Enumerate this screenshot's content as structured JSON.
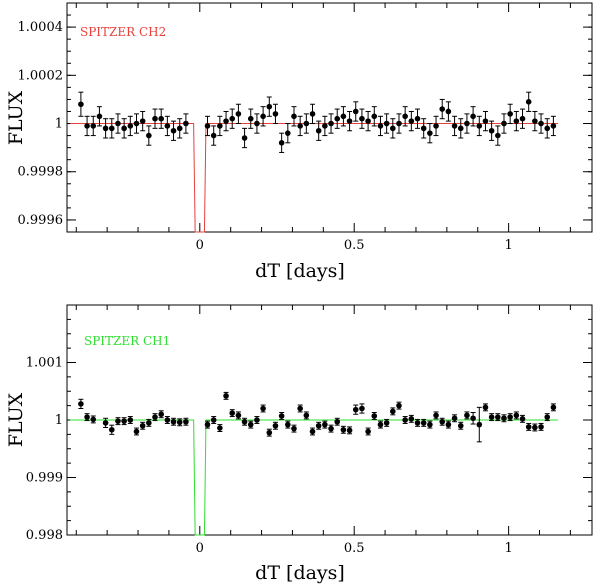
{
  "chart_data": [
    {
      "type": "scatter",
      "title": "SPITZER CH2",
      "title_color": "#e8413c",
      "model_color": "#e8413c",
      "xlabel": "dT [days]",
      "ylabel": "FLUX",
      "xlim": [
        -0.43,
        1.27
      ],
      "ylim": [
        0.99955,
        1.0005
      ],
      "xticks": [
        0,
        0.5,
        1
      ],
      "xtick_labels": [
        "0",
        "0.5",
        "1"
      ],
      "yticks": [
        0.9996,
        0.9998,
        1.0,
        1.0002,
        1.0004
      ],
      "ytick_labels": [
        "0.9996",
        "0.9998",
        "1",
        "1.0002",
        "1.0004"
      ],
      "transit": {
        "ingress": -0.015,
        "egress": 0.015,
        "depth_flux": 0.99955
      },
      "x": [
        -0.385,
        -0.365,
        -0.345,
        -0.325,
        -0.305,
        -0.285,
        -0.265,
        -0.245,
        -0.225,
        -0.205,
        -0.185,
        -0.165,
        -0.145,
        -0.125,
        -0.105,
        -0.085,
        -0.065,
        -0.045,
        0.025,
        0.045,
        0.065,
        0.085,
        0.105,
        0.125,
        0.145,
        0.165,
        0.185,
        0.205,
        0.225,
        0.245,
        0.265,
        0.285,
        0.305,
        0.325,
        0.345,
        0.365,
        0.385,
        0.405,
        0.425,
        0.445,
        0.465,
        0.485,
        0.505,
        0.525,
        0.545,
        0.565,
        0.585,
        0.605,
        0.625,
        0.645,
        0.665,
        0.685,
        0.705,
        0.725,
        0.745,
        0.765,
        0.785,
        0.805,
        0.825,
        0.845,
        0.865,
        0.885,
        0.905,
        0.925,
        0.945,
        0.965,
        0.985,
        1.005,
        1.025,
        1.045,
        1.065,
        1.085,
        1.105,
        1.125,
        1.145
      ],
      "y": [
        1.00008,
        0.99999,
        0.99999,
        1.00003,
        0.99998,
        0.99998,
        1.0,
        0.99998,
        0.99999,
        1.0,
        1.00001,
        0.99995,
        1.00002,
        1.00002,
        0.99999,
        0.99997,
        0.99998,
        1.0,
        0.99999,
        0.99995,
        0.99999,
        1.00001,
        1.00002,
        1.00004,
        0.99994,
        1.00002,
        1.0,
        1.00003,
        1.00007,
        1.00004,
        0.99992,
        0.99996,
        1.00003,
        0.99999,
        1.0,
        1.00004,
        0.99997,
        0.99999,
        1.0,
        1.00002,
        1.00003,
        1.00001,
        1.00005,
        1.00002,
        1.00001,
        1.00003,
        0.99999,
        1.0,
        0.99998,
        1.0,
        1.00003,
        1.00001,
        1.00002,
        0.99998,
        0.99996,
        0.99999,
        1.00006,
        1.00005,
        0.99999,
        0.99998,
        1.0,
        1.00003,
        0.99999,
        1.00001,
        0.99997,
        0.99995,
        1.0,
        1.00004,
        1.00001,
        1.00002,
        1.00009,
        1.00001,
        1.0,
        0.99998,
        0.99999
      ],
      "yerr": [
        5e-05,
        4e-05,
        4e-05,
        4e-05,
        4e-05,
        4e-05,
        4e-05,
        4e-05,
        4e-05,
        4e-05,
        4e-05,
        4e-05,
        4e-05,
        4e-05,
        4e-05,
        4e-05,
        4e-05,
        4e-05,
        4e-05,
        4e-05,
        4e-05,
        4e-05,
        4e-05,
        4e-05,
        4e-05,
        4e-05,
        4e-05,
        4e-05,
        4e-05,
        4e-05,
        4e-05,
        4e-05,
        4e-05,
        4e-05,
        4e-05,
        4e-05,
        4e-05,
        4e-05,
        4e-05,
        4e-05,
        4e-05,
        4e-05,
        4e-05,
        4e-05,
        4e-05,
        4e-05,
        4e-05,
        4e-05,
        4e-05,
        4e-05,
        4e-05,
        4e-05,
        4e-05,
        4e-05,
        4e-05,
        4e-05,
        4e-05,
        4e-05,
        4e-05,
        4e-05,
        4e-05,
        4e-05,
        4e-05,
        4e-05,
        4e-05,
        4e-05,
        4e-05,
        4e-05,
        4e-05,
        4e-05,
        4e-05,
        4e-05,
        4e-05,
        4e-05,
        4e-05
      ]
    },
    {
      "type": "scatter",
      "title": "SPITZER CH1",
      "title_color": "#2ee02e",
      "model_color": "#2ee02e",
      "xlabel": "dT [days]",
      "ylabel": "FLUX",
      "xlim": [
        -0.43,
        1.27
      ],
      "ylim": [
        0.998,
        1.002
      ],
      "xticks": [
        0,
        0.5,
        1
      ],
      "xtick_labels": [
        "0",
        "0.5",
        "1"
      ],
      "yticks": [
        0.998,
        0.999,
        1.0,
        1.001
      ],
      "ytick_labels": [
        "0.998",
        "0.999",
        "1",
        "1.001"
      ],
      "transit": {
        "ingress": -0.015,
        "egress": 0.015,
        "depth_flux": 0.998
      },
      "x": [
        -0.385,
        -0.365,
        -0.345,
        -0.305,
        -0.285,
        -0.265,
        -0.245,
        -0.225,
        -0.205,
        -0.185,
        -0.165,
        -0.145,
        -0.125,
        -0.105,
        -0.085,
        -0.065,
        -0.045,
        0.025,
        0.045,
        0.065,
        0.085,
        0.105,
        0.125,
        0.145,
        0.165,
        0.185,
        0.205,
        0.225,
        0.245,
        0.265,
        0.285,
        0.305,
        0.325,
        0.345,
        0.365,
        0.385,
        0.405,
        0.425,
        0.445,
        0.465,
        0.485,
        0.505,
        0.525,
        0.545,
        0.565,
        0.585,
        0.605,
        0.625,
        0.645,
        0.665,
        0.685,
        0.705,
        0.725,
        0.745,
        0.765,
        0.785,
        0.805,
        0.825,
        0.845,
        0.865,
        0.885,
        0.905,
        0.925,
        0.945,
        0.965,
        0.985,
        1.005,
        1.025,
        1.045,
        1.065,
        1.085,
        1.105,
        1.125,
        1.145
      ],
      "y": [
        1.00028,
        1.00005,
        1.00001,
        0.99995,
        0.99983,
        0.99998,
        0.99998,
        1.0,
        0.9998,
        0.9999,
        0.99995,
        1.00005,
        1.0001,
        1.0,
        0.99997,
        0.99996,
        0.99997,
        0.99992,
        1.0,
        0.99986,
        1.00042,
        1.00012,
        1.00008,
        0.99997,
        0.99992,
        1.0,
        1.0002,
        0.99978,
        0.9999,
        1.00007,
        0.99992,
        0.99985,
        1.0002,
        1.00008,
        0.9998,
        0.9999,
        0.99992,
        0.99985,
        0.99997,
        0.99983,
        0.99982,
        1.00018,
        1.0002,
        0.9998,
        1.00007,
        0.99992,
        0.99995,
        1.00015,
        1.00025,
        1.0,
        1.00002,
        0.99995,
        0.99995,
        0.99992,
        1.00008,
        0.99997,
        0.99992,
        1.00003,
        0.9999,
        1.00008,
        1.00003,
        0.99992,
        1.00022,
        1.00005,
        1.00005,
        1.00003,
        1.00005,
        1.00008,
        1.00002,
        0.99988,
        0.99987,
        0.99988,
        1.00005,
        1.00022
      ],
      "yerr": [
        8e-05,
        6e-05,
        6e-05,
        8e-05,
        8e-05,
        6e-05,
        6e-05,
        6e-05,
        6e-05,
        6e-05,
        6e-05,
        6e-05,
        6e-05,
        6e-05,
        6e-05,
        6e-05,
        6e-05,
        6e-05,
        6e-05,
        6e-05,
        6e-05,
        6e-05,
        6e-05,
        6e-05,
        6e-05,
        6e-05,
        6e-05,
        6e-05,
        6e-05,
        6e-05,
        6e-05,
        6e-05,
        6e-05,
        6e-05,
        6e-05,
        6e-05,
        6e-05,
        6e-05,
        6e-05,
        6e-05,
        6e-05,
        8e-05,
        8e-05,
        6e-05,
        6e-05,
        6e-05,
        6e-05,
        6e-05,
        6e-05,
        6e-05,
        6e-05,
        6e-05,
        6e-05,
        6e-05,
        6e-05,
        6e-05,
        6e-05,
        6e-05,
        6e-05,
        6e-05,
        0.0001,
        0.0003,
        6e-05,
        6e-05,
        6e-05,
        6e-05,
        6e-05,
        6e-05,
        6e-05,
        6e-05,
        6e-05,
        6e-05,
        6e-05,
        6e-05
      ]
    }
  ]
}
